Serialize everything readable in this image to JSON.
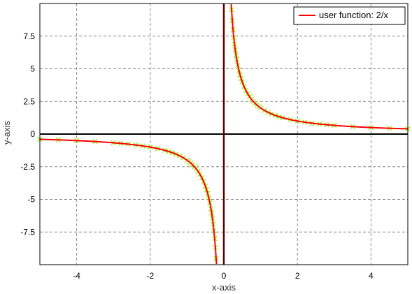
{
  "chart_data": {
    "type": "line",
    "xlabel": "x-axis",
    "ylabel": "y-axis",
    "xlim": [
      -5,
      5
    ],
    "ylim": [
      -10,
      10
    ],
    "x_ticks": [
      -4,
      -2,
      0,
      2,
      4
    ],
    "y_ticks": [
      -7.5,
      -5,
      -2.5,
      0,
      2.5,
      5,
      7.5
    ],
    "grid": true,
    "legend_position": "top-right",
    "series": [
      {
        "name": "user function: 2/x",
        "color": "#ff0000",
        "function": "2/x",
        "x_domain": [
          -5,
          5
        ]
      },
      {
        "color": "#99ee22",
        "marker": "x",
        "x": [
          -5.0,
          -4.5,
          -4.0,
          -3.5,
          -3.0,
          -2.8,
          -2.6,
          -2.4,
          -2.2,
          -2.0,
          -1.8,
          -1.6,
          -1.5,
          -1.4,
          -1.3,
          -1.2,
          -1.1,
          -1.0,
          -0.95,
          -0.9,
          -0.85,
          -0.8,
          -0.75,
          -0.7,
          -0.65,
          -0.6,
          -0.55,
          -0.5,
          -0.47,
          -0.44,
          -0.41,
          -0.38,
          -0.35,
          -0.33,
          -0.31,
          -0.29,
          -0.27,
          -0.25,
          -0.23,
          -0.21,
          0.21,
          0.23,
          0.25,
          0.27,
          0.29,
          0.31,
          0.33,
          0.35,
          0.38,
          0.41,
          0.44,
          0.47,
          0.5,
          0.55,
          0.6,
          0.65,
          0.7,
          0.75,
          0.8,
          0.85,
          0.9,
          0.95,
          1.0,
          1.1,
          1.2,
          1.3,
          1.4,
          1.5,
          1.6,
          1.8,
          2.0,
          2.2,
          2.4,
          2.6,
          2.8,
          3.0,
          3.5,
          4.0,
          4.5,
          5.0
        ],
        "y": [
          -0.4,
          -0.444,
          -0.5,
          -0.571,
          -0.667,
          -0.714,
          -0.769,
          -0.833,
          -0.909,
          -1.0,
          -1.111,
          -1.25,
          -1.333,
          -1.429,
          -1.538,
          -1.667,
          -1.818,
          -2.0,
          -2.105,
          -2.222,
          -2.353,
          -2.5,
          -2.667,
          -2.857,
          -3.077,
          -3.333,
          -3.636,
          -4.0,
          -4.255,
          -4.545,
          -4.878,
          -5.263,
          -5.714,
          -6.061,
          -6.452,
          -6.897,
          -7.407,
          -8.0,
          -8.696,
          -9.524,
          9.524,
          8.696,
          8.0,
          7.407,
          6.897,
          6.452,
          6.061,
          5.714,
          5.263,
          4.878,
          4.545,
          4.255,
          4.0,
          3.636,
          3.333,
          3.077,
          2.857,
          2.667,
          2.5,
          2.353,
          2.222,
          2.105,
          2.0,
          1.818,
          1.667,
          1.538,
          1.429,
          1.333,
          1.25,
          1.111,
          1.0,
          0.909,
          0.833,
          0.769,
          0.714,
          0.667,
          0.571,
          0.5,
          0.444,
          0.4
        ]
      }
    ],
    "colors": {
      "axis_zero": "#000000",
      "asymptote": "#5a0000",
      "grid": "#888888",
      "frame": "#000000"
    }
  }
}
